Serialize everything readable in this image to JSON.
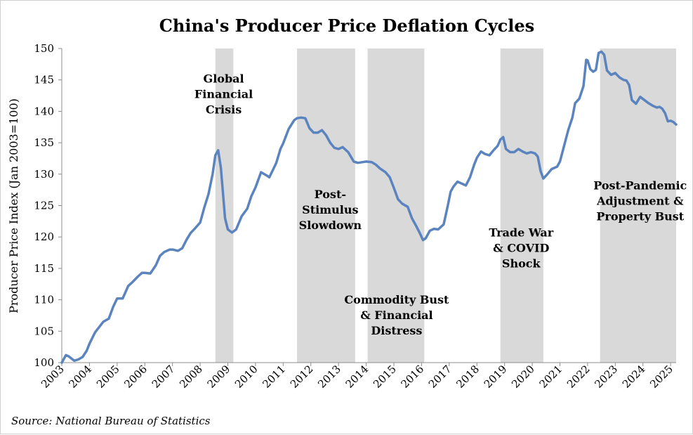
{
  "chart_data": {
    "type": "line",
    "title": "China's Producer Price Deflation Cycles",
    "xlabel": "",
    "ylabel": "Producer Price Index (Jan 2003=100)",
    "ylim": [
      100,
      150
    ],
    "yticks": [
      100,
      105,
      110,
      115,
      120,
      125,
      130,
      135,
      140,
      145,
      150
    ],
    "xlim": [
      2003.0,
      2025.2
    ],
    "xticks": [
      "2003",
      "2004",
      "2005",
      "2006",
      "2007",
      "2008",
      "2009",
      "2010",
      "2011",
      "2012",
      "2013",
      "2014",
      "2015",
      "2016",
      "2017",
      "2018",
      "2019",
      "2020",
      "2021",
      "2022",
      "2023",
      "2024",
      "2025"
    ],
    "source": "Source: National Bureau of Statistics",
    "line_color": "#5b84bf",
    "band_color": "#d9d9d9",
    "shaded_periods": [
      {
        "start": 2008.55,
        "end": 2009.2,
        "label": [
          "Global",
          "Financial",
          "Crisis"
        ],
        "label_x": 2008.85,
        "label_y": 144.6
      },
      {
        "start": 2011.5,
        "end": 2013.6,
        "label": [
          "Post-",
          "Stimulus",
          "Slowdown"
        ],
        "label_x": 2012.7,
        "label_y": 126.2
      },
      {
        "start": 2014.05,
        "end": 2016.1,
        "label": [
          "Commodity Bust",
          "& Financial",
          "Distress"
        ],
        "label_x": 2015.1,
        "label_y": 109.4
      },
      {
        "start": 2018.85,
        "end": 2020.4,
        "label": [
          "Trade War",
          "& COVID",
          "Shock"
        ],
        "label_x": 2019.6,
        "label_y": 120.1
      },
      {
        "start": 2022.45,
        "end": 2025.3,
        "label": [
          "Post-Pandemic",
          "Adjustment &",
          "Property Bust"
        ],
        "label_x": 2023.9,
        "label_y": 127.6
      }
    ],
    "series": [
      {
        "name": "Producer Price Index",
        "x": [
          2003.0,
          2003.15,
          2003.25,
          2003.45,
          2003.6,
          2003.75,
          2003.9,
          2004.0,
          2004.2,
          2004.5,
          2004.7,
          2004.85,
          2005.0,
          2005.2,
          2005.4,
          2005.55,
          2005.75,
          2005.9,
          2006.0,
          2006.2,
          2006.4,
          2006.55,
          2006.7,
          2006.9,
          2007.0,
          2007.2,
          2007.35,
          2007.5,
          2007.65,
          2007.8,
          2008.0,
          2008.15,
          2008.3,
          2008.45,
          2008.55,
          2008.65,
          2008.75,
          2008.9,
          2009.0,
          2009.15,
          2009.3,
          2009.5,
          2009.7,
          2009.85,
          2010.0,
          2010.2,
          2010.4,
          2010.5,
          2010.6,
          2010.75,
          2010.9,
          2011.0,
          2011.2,
          2011.4,
          2011.5,
          2011.65,
          2011.8,
          2011.95,
          2012.1,
          2012.25,
          2012.4,
          2012.55,
          2012.7,
          2012.85,
          2013.0,
          2013.15,
          2013.35,
          2013.55,
          2013.7,
          2013.85,
          2014.0,
          2014.2,
          2014.35,
          2014.5,
          2014.7,
          2014.85,
          2015.0,
          2015.15,
          2015.3,
          2015.5,
          2015.65,
          2015.8,
          2015.95,
          2016.05,
          2016.15,
          2016.3,
          2016.45,
          2016.6,
          2016.8,
          2016.95,
          2017.05,
          2017.15,
          2017.3,
          2017.45,
          2017.6,
          2017.75,
          2017.9,
          2018.0,
          2018.15,
          2018.3,
          2018.45,
          2018.6,
          2018.75,
          2018.85,
          2018.95,
          2019.05,
          2019.2,
          2019.35,
          2019.5,
          2019.65,
          2019.8,
          2019.95,
          2020.1,
          2020.2,
          2020.3,
          2020.4,
          2020.55,
          2020.7,
          2020.9,
          2021.0,
          2021.15,
          2021.3,
          2021.45,
          2021.55,
          2021.7,
          2021.85,
          2021.95,
          2022.0,
          2022.1,
          2022.2,
          2022.3,
          2022.4,
          2022.5,
          2022.6,
          2022.7,
          2022.85,
          2023.0,
          2023.15,
          2023.3,
          2023.4,
          2023.5,
          2023.6,
          2023.75,
          2023.9,
          2024.05,
          2024.2,
          2024.35,
          2024.5,
          2024.6,
          2024.7,
          2024.8,
          2024.9,
          2025.0,
          2025.1,
          2025.2
        ],
        "values": [
          100.0,
          101.2,
          101.0,
          100.3,
          100.5,
          100.9,
          101.9,
          103.0,
          104.8,
          106.5,
          107.0,
          108.8,
          110.2,
          110.2,
          112.2,
          112.8,
          113.7,
          114.3,
          114.3,
          114.2,
          115.5,
          117.0,
          117.6,
          118.0,
          118.0,
          117.8,
          118.2,
          119.5,
          120.6,
          121.3,
          122.3,
          124.7,
          126.8,
          130.0,
          133.0,
          133.8,
          131.0,
          123.0,
          121.2,
          120.7,
          121.2,
          123.3,
          124.5,
          126.5,
          127.9,
          130.3,
          129.8,
          129.5,
          130.4,
          131.8,
          134.0,
          134.9,
          137.2,
          138.6,
          138.9,
          139.0,
          138.9,
          137.3,
          136.6,
          136.6,
          137.0,
          136.2,
          135.0,
          134.2,
          134.0,
          134.3,
          133.5,
          132.0,
          131.8,
          131.9,
          132.0,
          131.9,
          131.5,
          130.9,
          130.3,
          129.5,
          127.8,
          126.0,
          125.3,
          124.8,
          123.0,
          121.8,
          120.5,
          119.5,
          119.8,
          121.0,
          121.3,
          121.2,
          122.0,
          125.0,
          127.2,
          128.0,
          128.8,
          128.5,
          128.2,
          129.5,
          131.5,
          132.6,
          133.6,
          133.2,
          133.0,
          133.8,
          134.5,
          135.5,
          135.9,
          134.0,
          133.5,
          133.5,
          134.0,
          133.6,
          133.3,
          133.5,
          133.3,
          132.8,
          130.5,
          129.3,
          130.0,
          130.8,
          131.2,
          132.0,
          134.5,
          137.0,
          139.0,
          141.3,
          142.0,
          144.0,
          148.2,
          148.1,
          146.7,
          146.3,
          146.6,
          149.3,
          149.5,
          149.0,
          146.5,
          145.8,
          146.1,
          145.4,
          145.0,
          144.9,
          144.2,
          141.8,
          141.2,
          142.3,
          141.8,
          141.3,
          140.9,
          140.6,
          140.7,
          140.4,
          139.7,
          138.4,
          138.5,
          138.3,
          137.9
        ]
      }
    ]
  }
}
